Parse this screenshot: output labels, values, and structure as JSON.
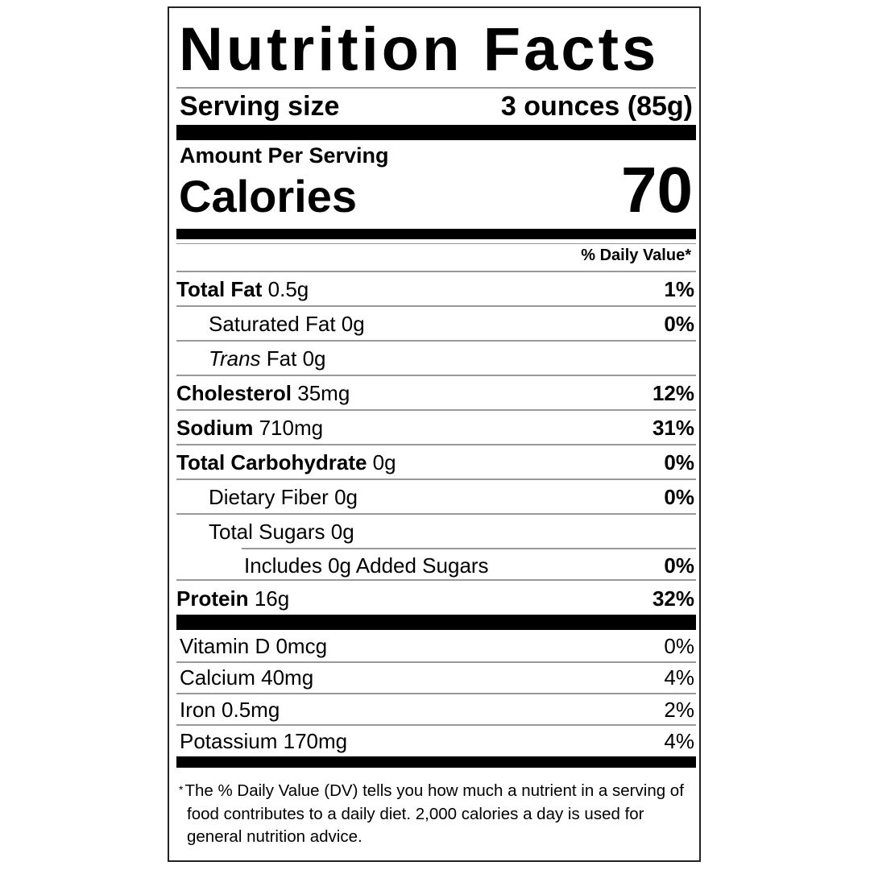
{
  "title": "Nutrition Facts",
  "serving": {
    "label": "Serving size",
    "value": "3 ounces (85g)"
  },
  "calories": {
    "amount_label": "Amount Per Serving",
    "label": "Calories",
    "value": "70"
  },
  "dv_header": "% Daily Value*",
  "nutrients": [
    {
      "name": "Total Fat",
      "amount": "0.5g",
      "dv": "1%"
    },
    {
      "name": "Saturated Fat",
      "amount": "0g",
      "dv": "0%"
    },
    {
      "name": "Trans",
      "suffix": "Fat",
      "amount": "0g",
      "dv": ""
    },
    {
      "name": "Cholesterol",
      "amount": "35mg",
      "dv": "12%"
    },
    {
      "name": "Sodium",
      "amount": "710mg",
      "dv": "31%"
    },
    {
      "name": "Total Carbohydrate",
      "amount": "0g",
      "dv": "0%"
    },
    {
      "name": "Dietary Fiber",
      "amount": "0g",
      "dv": "0%"
    },
    {
      "name": "Total Sugars",
      "amount": "0g",
      "dv": ""
    },
    {
      "name": "Includes 0g Added Sugars",
      "amount": "",
      "dv": "0%"
    },
    {
      "name": "Protein",
      "amount": "16g",
      "dv": "32%"
    }
  ],
  "vitamins": [
    {
      "name": "Vitamin D 0mcg",
      "dv": "0%"
    },
    {
      "name": "Calcium 40mg",
      "dv": "4%"
    },
    {
      "name": "Iron 0.5mg",
      "dv": "2%"
    },
    {
      "name": "Potassium 170mg",
      "dv": "4%"
    }
  ],
  "footnote": {
    "star": "*",
    "text": "The % Daily Value (DV) tells you how much a nutrient in a serving of food contributes to a daily diet. 2,000 calories a day is used for general nutrition advice."
  }
}
